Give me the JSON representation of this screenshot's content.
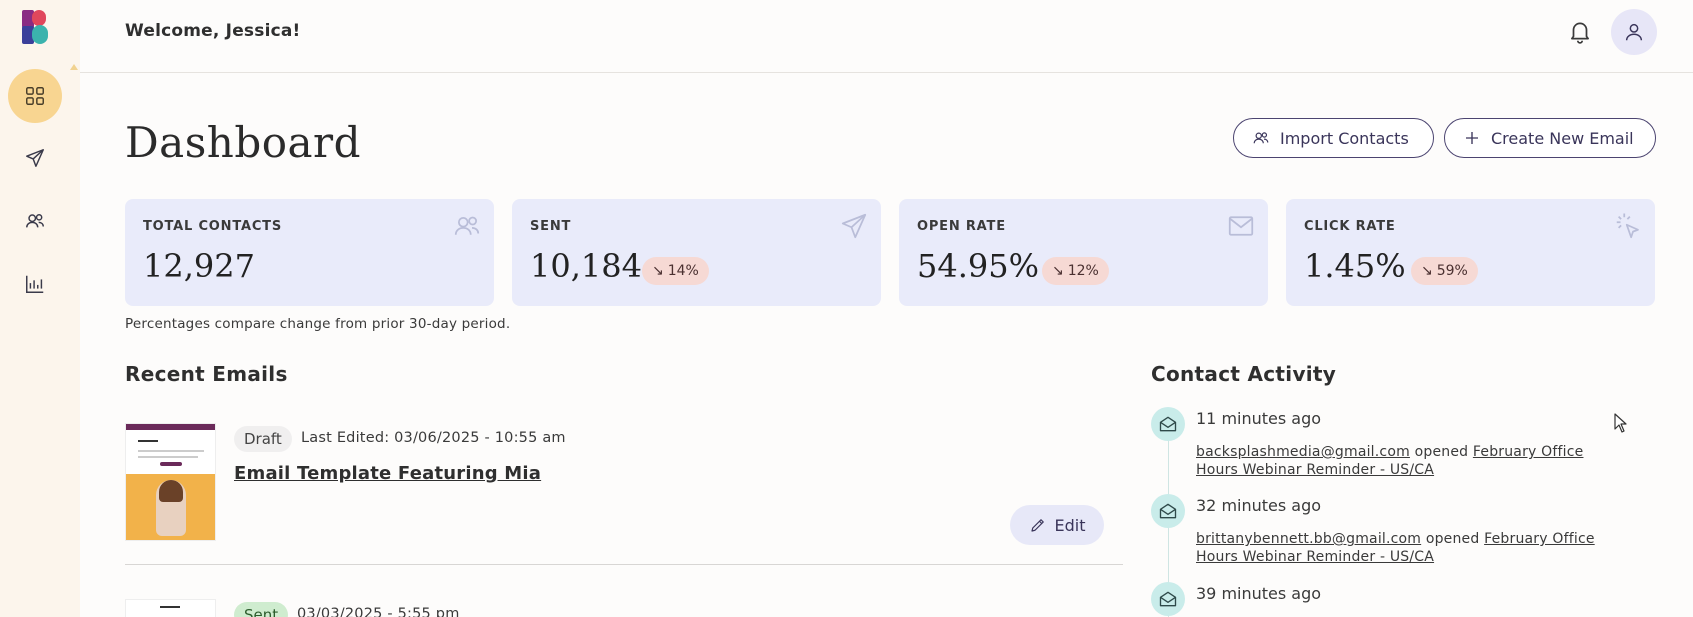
{
  "header": {
    "welcome": "Welcome, Jessica!"
  },
  "sidebar": {
    "items": [
      {
        "name": "dashboard",
        "icon": "grid-icon",
        "active": true
      },
      {
        "name": "emails",
        "icon": "send-icon",
        "active": false
      },
      {
        "name": "contacts",
        "icon": "users-icon",
        "active": false
      },
      {
        "name": "reports",
        "icon": "bar-chart-icon",
        "active": false
      }
    ]
  },
  "page": {
    "title": "Dashboard",
    "import_label": "Import Contacts",
    "create_label": "Create New Email"
  },
  "stats": [
    {
      "label": "TOTAL CONTACTS",
      "value": "12,927",
      "delta": "",
      "icon": "users-icon"
    },
    {
      "label": "SENT",
      "value": "10,184",
      "delta": "14%",
      "icon": "send-icon"
    },
    {
      "label": "OPEN RATE",
      "value": "54.95%",
      "delta": "12%",
      "icon": "mail-icon"
    },
    {
      "label": "CLICK RATE",
      "value": "1.45%",
      "delta": "59%",
      "icon": "click-icon"
    }
  ],
  "note": "Percentages compare change from prior 30-day period.",
  "recent": {
    "title": "Recent Emails",
    "emails": [
      {
        "status": "Draft",
        "edited": "Last Edited: 03/06/2025 - 10:55 am",
        "title": "Email Template Featuring Mia",
        "edit_label": "Edit"
      },
      {
        "status": "Sent",
        "edited": "03/03/2025 - 5:55 pm"
      }
    ]
  },
  "activity": {
    "title": "Contact Activity",
    "items": [
      {
        "time": "11 minutes ago",
        "email": "backsplashmedia@gmail.com",
        "verb": "opened",
        "subject": "February Office Hours Webinar Reminder - US/CA"
      },
      {
        "time": "32 minutes ago",
        "email": "brittanybennett.bb@gmail.com",
        "verb": "opened",
        "subject": "February Office Hours Webinar Reminder - US/CA"
      },
      {
        "time": "39 minutes ago"
      }
    ]
  },
  "colors": {
    "sidebar_bg": "#fcf5ec",
    "active_nav": "#f8d591",
    "card_bg": "#e9ebfa",
    "delta_bg": "#f6d9d4",
    "activity_icon_bg": "#c9ecea",
    "accent": "#4b4470"
  }
}
